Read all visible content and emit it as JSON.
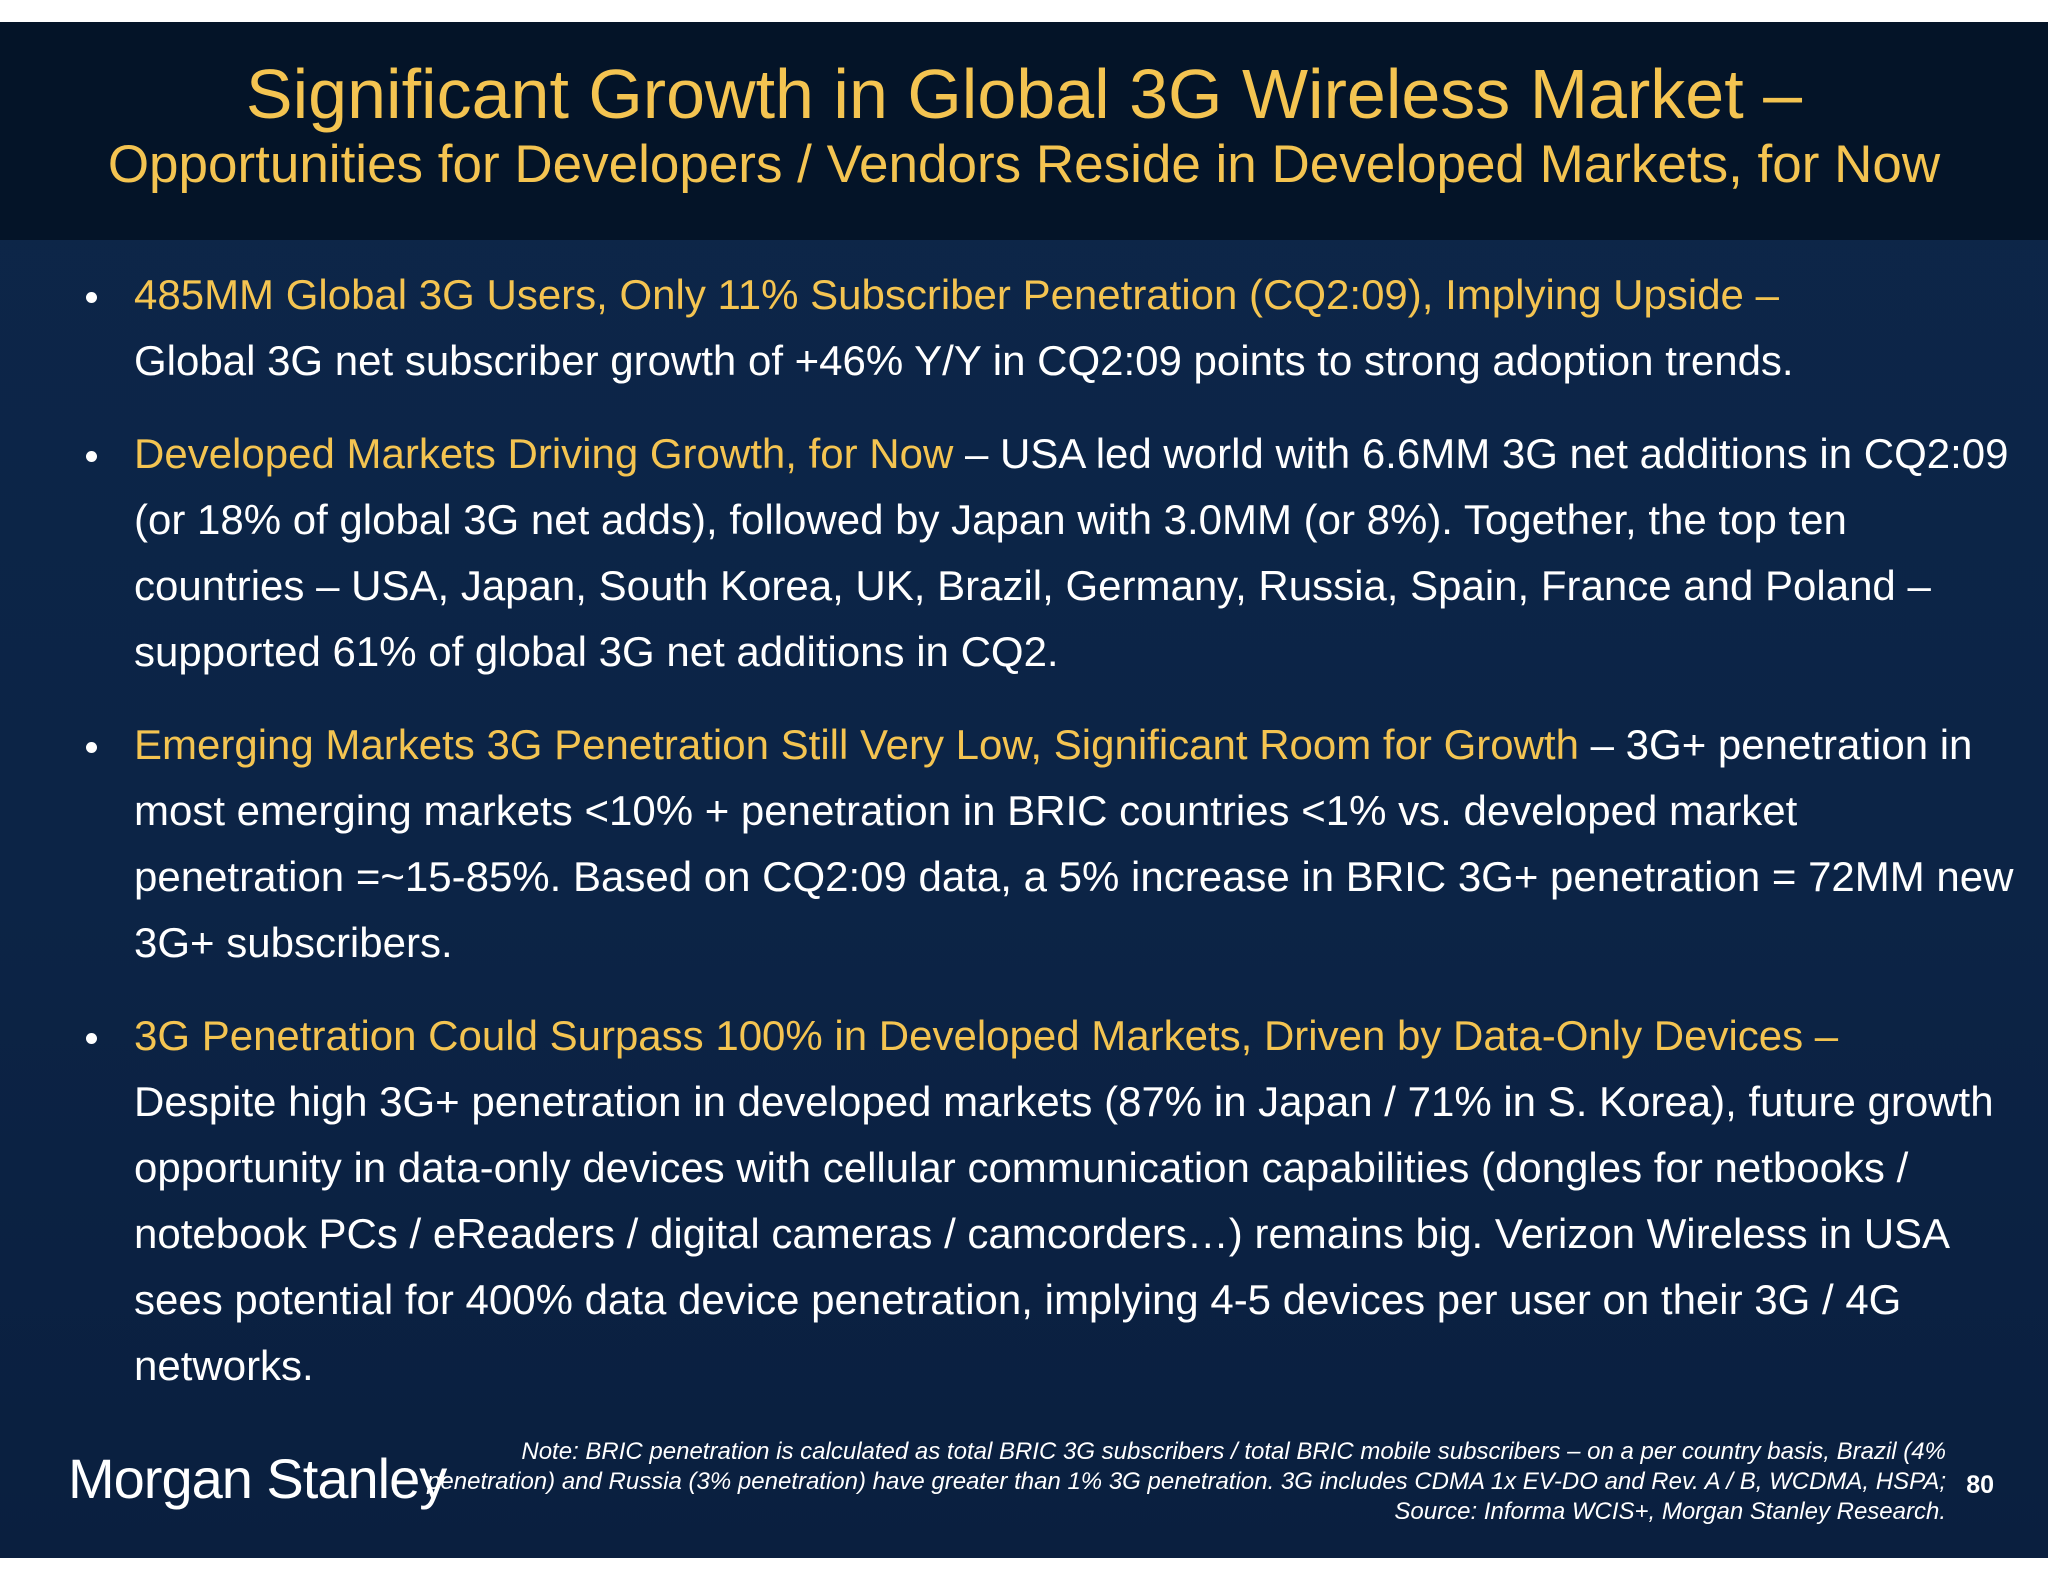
{
  "header": {
    "title": "Significant Growth in Global 3G Wireless Market –",
    "subtitle": "Opportunities for Developers / Vendors Reside in Developed Markets, for Now"
  },
  "bullets": [
    {
      "lead": "485MM Global 3G Users, Only 11% Subscriber Penetration (CQ2:09), Implying Upside –",
      "body": "Global 3G net subscriber growth of +46% Y/Y in CQ2:09 points to strong adoption trends."
    },
    {
      "lead": "Developed Markets Driving Growth, for Now",
      "body": "– USA led world with 6.6MM 3G net additions in CQ2:09 (or 18% of global 3G net adds), followed by Japan with 3.0MM (or 8%). Together, the top ten countries – USA, Japan, South Korea, UK, Brazil, Germany, Russia, Spain, France and Poland – supported 61% of global 3G net additions in CQ2."
    },
    {
      "lead": "Emerging Markets 3G Penetration Still Very Low, Significant Room for Growth",
      "body": "– 3G+ penetration in most emerging markets <10% + penetration in BRIC countries <1% vs. developed market penetration =~15-85%. Based on CQ2:09 data, a 5% increase in BRIC 3G+ penetration = 72MM new 3G+ subscribers."
    },
    {
      "lead": "3G Penetration Could Surpass 100% in Developed Markets, Driven by Data-Only Devices –",
      "body": "Despite high 3G+ penetration in developed markets (87% in Japan / 71% in S. Korea), future growth opportunity in data-only devices with cellular communication capabilities (dongles for netbooks / notebook PCs / eReaders / digital cameras / camcorders…) remains big. Verizon Wireless in USA sees potential for 400% data device penetration, implying 4-5 devices per user on their 3G / 4G networks."
    }
  ],
  "footer": {
    "logo": "Morgan Stanley",
    "note": "Note: BRIC penetration is calculated as total BRIC 3G subscribers / total BRIC mobile subscribers – on a per country basis, Brazil (4% penetration) and Russia (3% penetration) have greater than 1% 3G penetration. 3G includes CDMA 1x EV-DO and Rev. A / B, WCDMA, HSPA; Source: Informa WCIS+, Morgan Stanley Research.",
    "page_number": "80"
  },
  "colors": {
    "accent": "#f4c451",
    "header_bg": "#041428",
    "body_bg": "#0c2446",
    "text": "#ffffff"
  }
}
